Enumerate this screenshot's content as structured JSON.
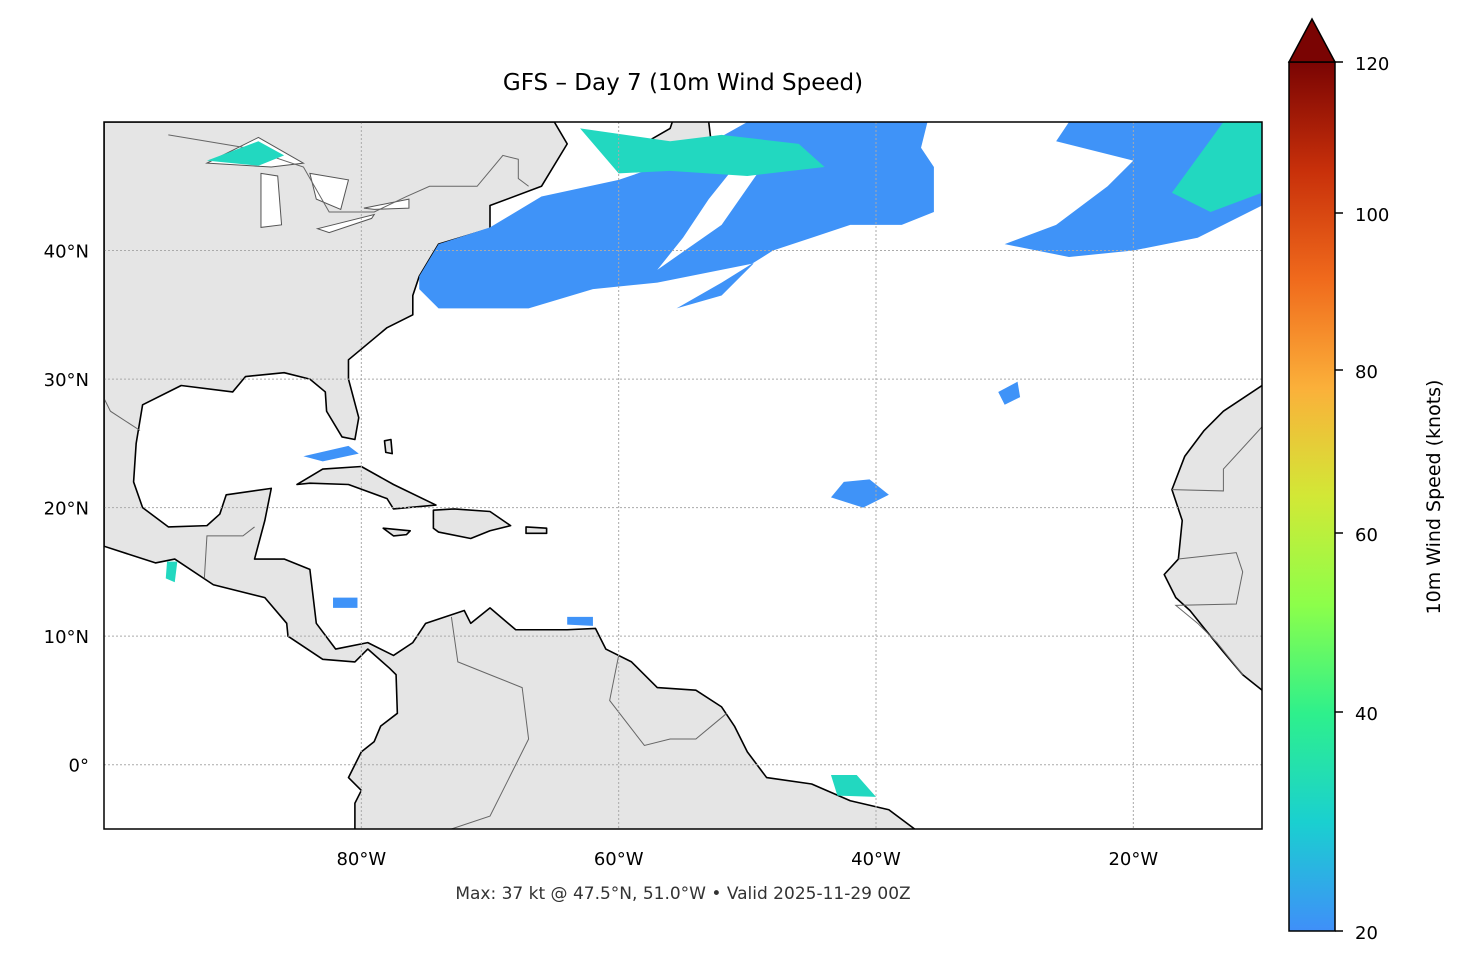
{
  "title": "GFS – Day 7 (10m Wind Speed)",
  "subtitle": "Max: 37 kt @ 47.5°N, 51.0°W • Valid 2025-11-29 00Z",
  "map": {
    "extent": {
      "lon_min": -100,
      "lon_max": -10,
      "lat_min": -5,
      "lat_max": 50
    },
    "gridlines": true,
    "lon_ticks": [
      {
        "value": -80,
        "label": "80°W"
      },
      {
        "value": -60,
        "label": "60°W"
      },
      {
        "value": -40,
        "label": "40°W"
      },
      {
        "value": -20,
        "label": "20°W"
      }
    ],
    "lat_ticks": [
      {
        "value": 40,
        "label": "40°N"
      },
      {
        "value": 30,
        "label": "30°N"
      },
      {
        "value": 20,
        "label": "20°N"
      },
      {
        "value": 10,
        "label": "10°N"
      },
      {
        "value": 0,
        "label": "0°"
      }
    ],
    "land_color": "#e5e5e5",
    "ocean_color": "#ffffff",
    "max_wind": {
      "value_kt": 37,
      "lat": 47.5,
      "lon": -51.0
    }
  },
  "colorbar": {
    "label": "10m Wind Speed (knots)",
    "ticks": [
      "20",
      "40",
      "60",
      "80",
      "100",
      "120"
    ],
    "extend": "max",
    "colormap": "turbo",
    "colors": [
      "#3f8ff9",
      "#1ad0d0",
      "#2ef08c",
      "#8cff4a",
      "#d2e836",
      "#fbb03a",
      "#f06a1c",
      "#c8300a",
      "#7a0403"
    ]
  }
}
